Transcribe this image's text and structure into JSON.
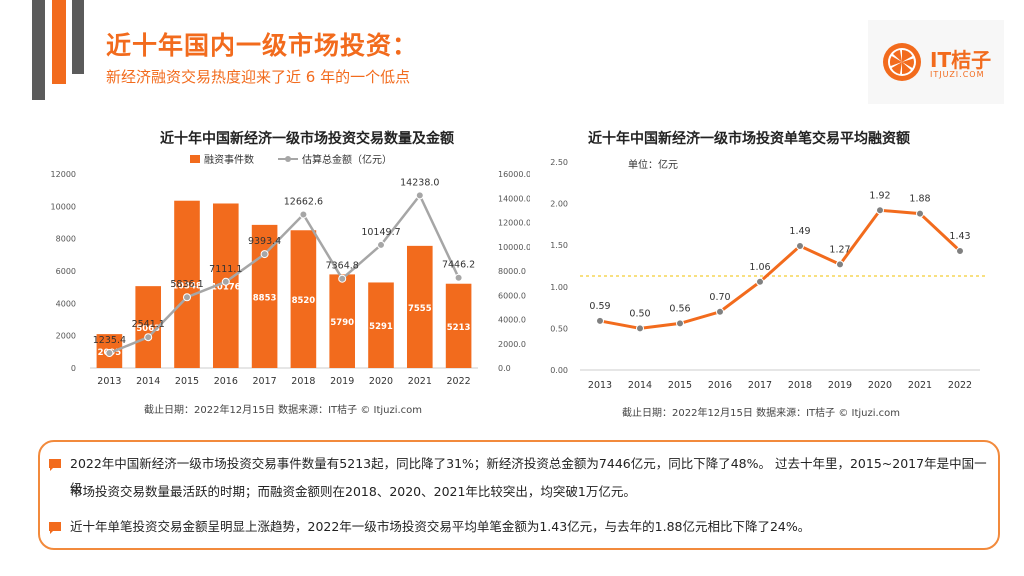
{
  "header": {
    "title": "近十年国内一级市场投资：",
    "subtitle": "新经济融资交易热度迎来了近 6 年的一个低点"
  },
  "logo": {
    "name": "IT桔子",
    "url": "ITJUZI.COM"
  },
  "colors": {
    "accent": "#f26b1d",
    "line_grey": "#a6a6a6",
    "dashed": "#f2c200"
  },
  "left_chart": {
    "title": "近十年中国新经济一级市场投资交易数量及金额",
    "footnote": "截止日期：2022年12月15日 数据来源：IT桔子 © Itjuzi.com"
  },
  "right_chart": {
    "title": "近十年中国新经济一级市场投资单笔交易平均融资额",
    "unit": "单位：亿元",
    "footnote": "截止日期：2022年12月15日 数据来源：IT桔子 © Itjuzi.com"
  },
  "chart_data": [
    {
      "type": "bar",
      "title": "近十年中国新经济一级市场投资交易数量及金额",
      "categories": [
        "2013",
        "2014",
        "2015",
        "2016",
        "2017",
        "2018",
        "2019",
        "2020",
        "2021",
        "2022"
      ],
      "series": [
        {
          "name": "融资事件数",
          "type": "bar",
          "axis": "left",
          "values": [
            2095,
            5063,
            10348,
            10176,
            8853,
            8520,
            5790,
            5291,
            7555,
            5213
          ],
          "labels": [
            "2095",
            "5063",
            "10348",
            "10176",
            "8853",
            "8520",
            "5790",
            "5291",
            "7555",
            "5213"
          ]
        },
        {
          "name": "估算总金额（亿元）",
          "type": "line",
          "axis": "right",
          "values": [
            1235.4,
            2541.1,
            5836.1,
            7111.1,
            9393.4,
            12662.6,
            7364.8,
            10149.7,
            14238.0,
            7446.2
          ],
          "labels": [
            "1235.4",
            "2541.1",
            "5836.1",
            "7111.1",
            "9393.4",
            "12662.6",
            "7364.8",
            "10149.7",
            "14238.0",
            "7446.2"
          ]
        }
      ],
      "ylim_left": [
        0,
        12000
      ],
      "yticks_left": [
        "0",
        "2000",
        "4000",
        "6000",
        "8000",
        "10000",
        "12000"
      ],
      "ylim_right": [
        0,
        16000
      ],
      "yticks_right": [
        "0.0",
        "2000.0",
        "4000.0",
        "6000.0",
        "8000.0",
        "10000.0",
        "12000.0",
        "14000.0",
        "16000.0"
      ],
      "legend": "top-center"
    },
    {
      "type": "line",
      "title": "近十年中国新经济一级市场投资单笔交易平均融资额",
      "categories": [
        "2013",
        "2014",
        "2015",
        "2016",
        "2017",
        "2018",
        "2019",
        "2020",
        "2021",
        "2022"
      ],
      "series": [
        {
          "values": [
            0.59,
            0.5,
            0.56,
            0.7,
            1.06,
            1.49,
            1.27,
            1.92,
            1.88,
            1.43
          ],
          "labels": [
            "0.59",
            "0.50",
            "0.56",
            "0.70",
            "1.06",
            "1.49",
            "1.27",
            "1.92",
            "1.88",
            "1.43"
          ]
        }
      ],
      "ylim": [
        0,
        2.5
      ],
      "yticks": [
        "0.00",
        "0.50",
        "1.00",
        "1.50",
        "2.00",
        "2.50"
      ],
      "reference_line": 1.13
    }
  ],
  "summary": {
    "line1": "2022年中国新经济一级市场投资交易事件数量有5213起，同比降了31%；新经济投资总金额为7446亿元，同比下降了48%。 过去十年里，2015~2017年是中国一级",
    "line2": "市场投资交易数量最活跃的时期；而融资金额则在2018、2020、2021年比较突出，均突破1万亿元。",
    "line3": "近十年单笔投资交易金额呈明显上涨趋势，2022年一级市场投资交易平均单笔金额为1.43亿元，与去年的1.88亿元相比下降了24%。"
  }
}
